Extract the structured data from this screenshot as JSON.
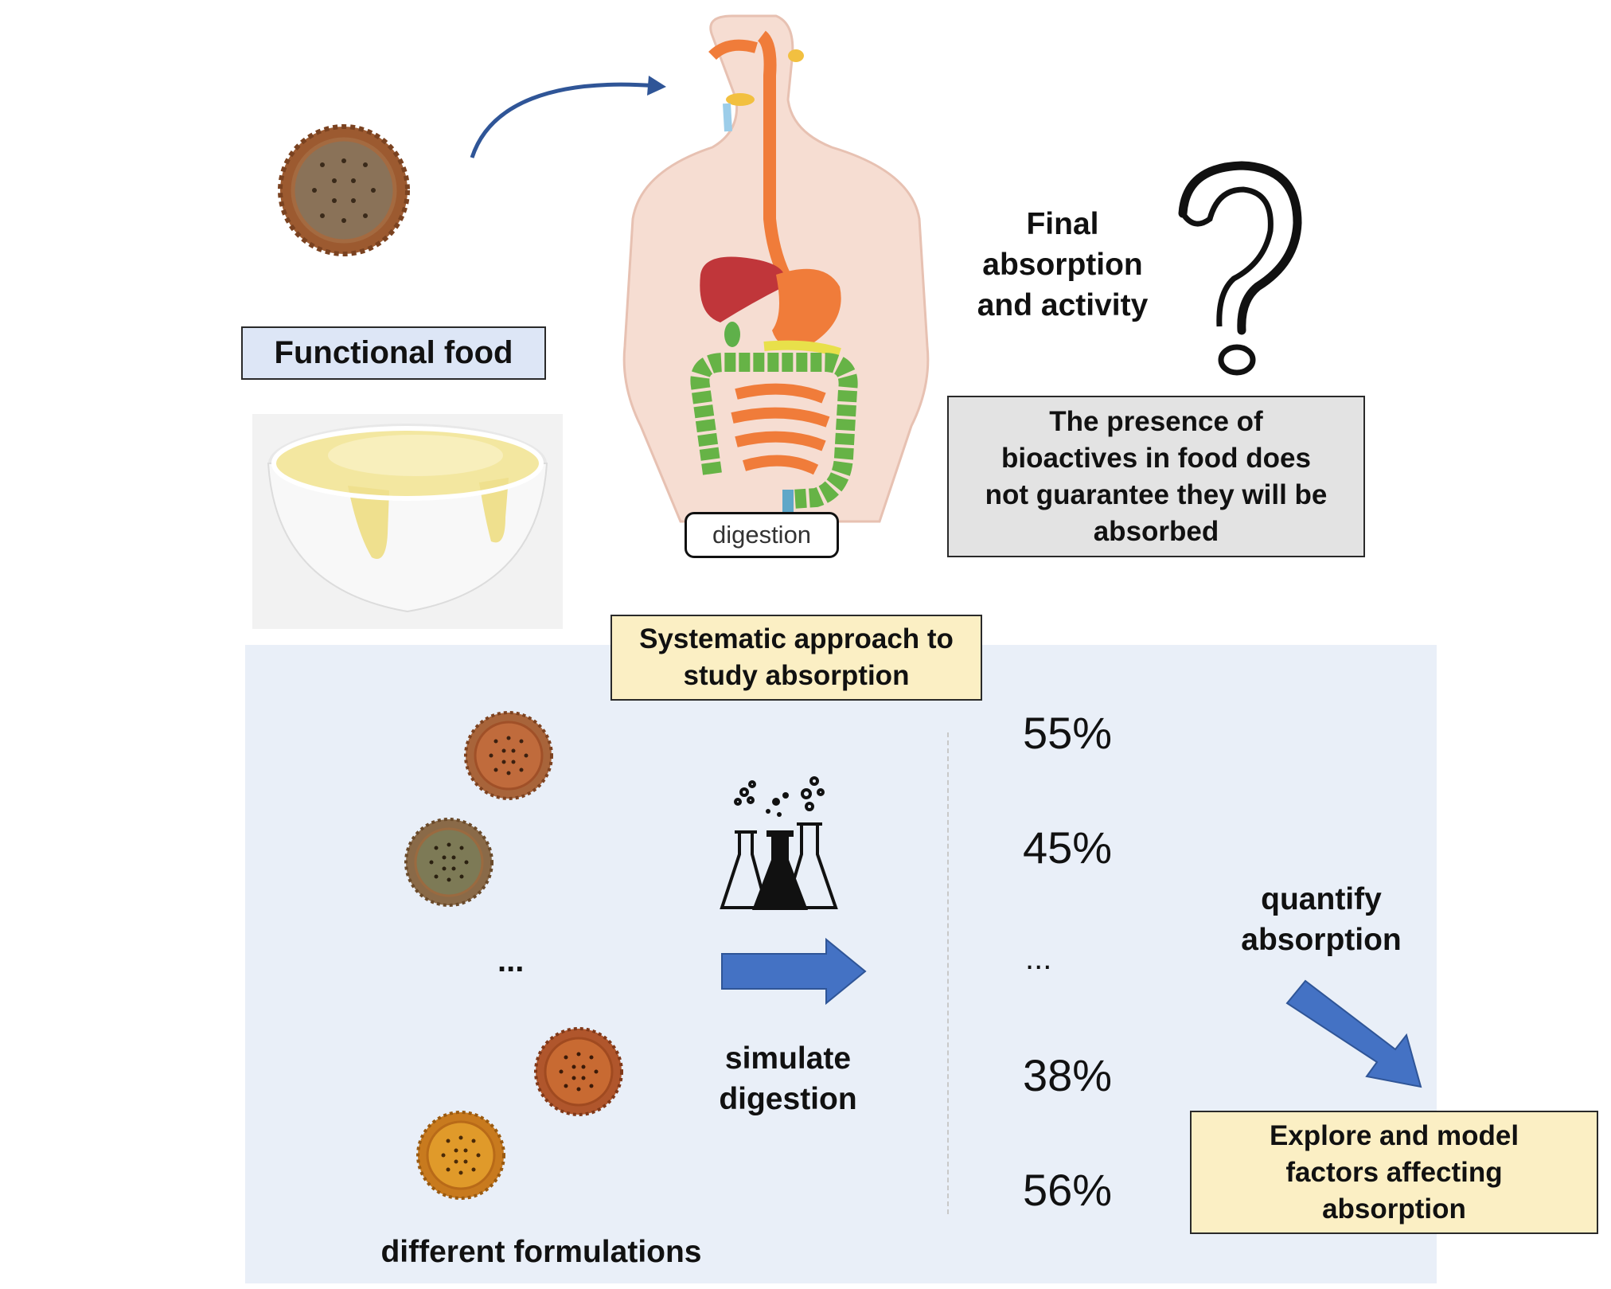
{
  "top": {
    "functional_food_label": "Functional food",
    "digestion_label": "digestion",
    "final_absorption_label": "Final absorption and activity",
    "final_absorption_lines": [
      "Final",
      "absorption",
      "and activity"
    ],
    "bioactives_note_lines": [
      "The presence of",
      "bioactives in food does",
      "not guarantee they will be",
      "absorbed"
    ]
  },
  "bottom": {
    "approach_lines": [
      "Systematic approach to",
      "study absorption"
    ],
    "ellipsis_left": "...",
    "ellipsis_right": "...",
    "simulate_lines": [
      "simulate",
      "digestion"
    ],
    "formulations_label": "different formulations",
    "percentages": [
      "55%",
      "45%",
      "38%",
      "56%"
    ],
    "quantify_lines": [
      "quantify",
      "absorption"
    ],
    "explore_lines": [
      "Explore and model",
      "factors affecting",
      "absorption"
    ]
  },
  "colors": {
    "panel_bg": "#e9eff8",
    "label_box_blue": "#dde6f6",
    "note_box_gray": "#e3e3e3",
    "highlight_box_yellow": "#fbefc4",
    "arrow_blue": "#4472c4",
    "biscuit_brown": "#a8643a",
    "biscuit_green": "#7d7a56",
    "biscuit_orange": "#c86a32",
    "biscuit_yellow": "#d88f22"
  },
  "icons": [
    "biscuit-icon",
    "custard-bowl-icon",
    "digestive-system-illustration",
    "question-mark-icon",
    "lab-flasks-icon",
    "curved-arrow-icon",
    "right-arrow-icon",
    "diagonal-arrow-icon"
  ]
}
